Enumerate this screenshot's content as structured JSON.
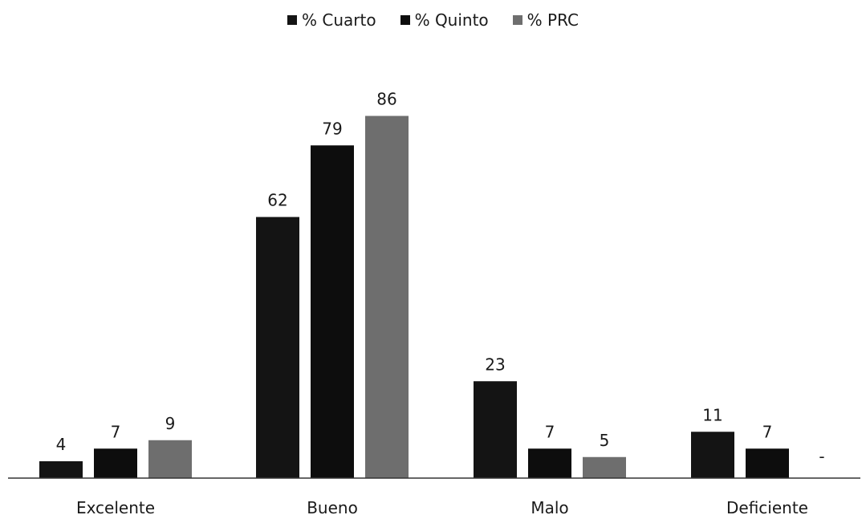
{
  "chart_data": {
    "type": "bar",
    "categories": [
      "Excelente",
      "Bueno",
      "Malo",
      "Deficiente"
    ],
    "series": [
      {
        "name": "% Cuarto",
        "values": [
          4,
          62,
          23,
          11
        ],
        "color": "#141414"
      },
      {
        "name": "% Quinto",
        "values": [
          7,
          79,
          7,
          7
        ],
        "color": "#0d0d0d"
      },
      {
        "name": "% PRC",
        "values": [
          9,
          86,
          5,
          null
        ],
        "color": "#6e6e6e"
      }
    ],
    "data_labels": [
      [
        "4",
        "62",
        "23",
        "11"
      ],
      [
        "7",
        "79",
        "7",
        "7"
      ],
      [
        "9",
        "86",
        "5",
        "-"
      ]
    ],
    "ylim": [
      0,
      100
    ],
    "grid": false,
    "legend_position": "top-center"
  }
}
